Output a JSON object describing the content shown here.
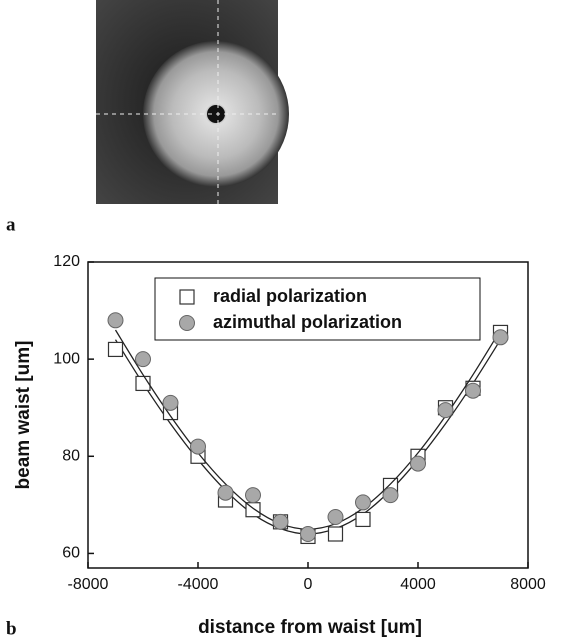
{
  "panels": [
    "a",
    "b"
  ],
  "chart_data": {
    "type": "scatter",
    "x_label": "distance from waist [um]",
    "y_label": "beam waist [um]",
    "x": [
      -7000,
      -6000,
      -5000,
      -4000,
      -3000,
      -2000,
      -1000,
      0,
      1000,
      2000,
      3000,
      4000,
      5000,
      6000,
      7000
    ],
    "series": [
      {
        "name": "radial polarization",
        "marker": "square",
        "color": "#ffffff",
        "values": [
          102,
          95,
          89,
          80,
          71,
          69,
          66.5,
          63.5,
          64,
          67,
          74,
          80,
          90,
          94,
          105.5
        ],
        "fit_values": [
          104,
          95,
          86.7,
          79.3,
          73,
          68.1,
          65.1,
          64,
          65.1,
          68.1,
          73,
          79.3,
          86.7,
          95,
          104
        ]
      },
      {
        "name": "azimuthal polarization",
        "marker": "circle",
        "color": "#a8a8a8",
        "values": [
          108,
          100,
          91,
          82,
          72.5,
          72,
          66.5,
          64,
          67.5,
          70.5,
          72,
          78.5,
          89.5,
          93.5,
          104.5
        ],
        "fit_values": [
          106,
          96.8,
          88.3,
          80.7,
          74.3,
          69.3,
          66.1,
          65,
          66.1,
          69.3,
          74.3,
          80.7,
          88.3,
          96.8,
          106
        ]
      }
    ],
    "xlim": [
      -8000,
      8000
    ],
    "xticks": [
      -8000,
      -4000,
      0,
      4000,
      8000
    ],
    "ylim": [
      57,
      120
    ],
    "yticks": [
      60,
      80,
      100,
      120
    ]
  }
}
